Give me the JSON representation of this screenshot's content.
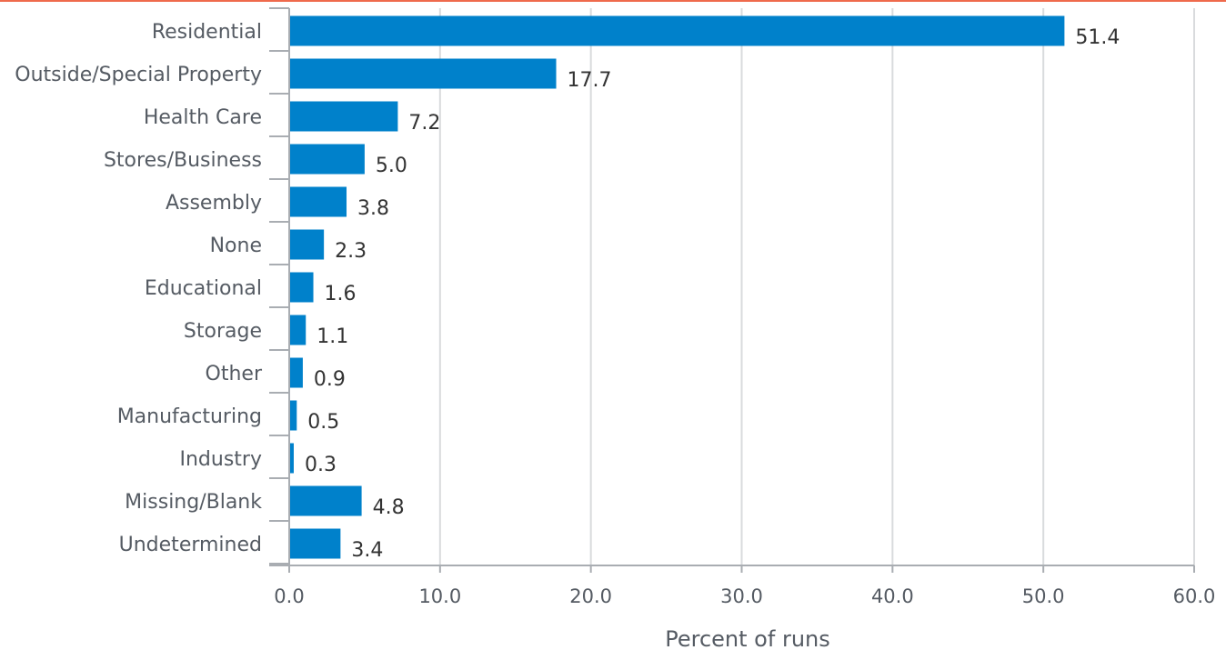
{
  "chart_data": {
    "type": "bar",
    "orientation": "horizontal",
    "categories": [
      "Residential",
      "Outside/Special Property",
      "Health Care",
      "Stores/Business",
      "Assembly",
      "None",
      "Educational",
      "Storage",
      "Other",
      "Manufacturing",
      "Industry",
      "Missing/Blank",
      "Undetermined"
    ],
    "values": [
      51.4,
      17.7,
      7.2,
      5.0,
      3.8,
      2.3,
      1.6,
      1.1,
      0.9,
      0.5,
      0.3,
      4.8,
      3.4
    ],
    "value_labels": [
      "51.4",
      "17.7",
      "7.2",
      "5.0",
      "3.8",
      "2.3",
      "1.6",
      "1.1",
      "0.9",
      "0.5",
      "0.3",
      "4.8",
      "3.4"
    ],
    "title": "",
    "xlabel": "Percent of runs",
    "ylabel": "",
    "xlim": [
      0,
      60
    ],
    "xticks": [
      0,
      10,
      20,
      30,
      40,
      50,
      60
    ],
    "xtick_labels": [
      "0.0",
      "10.0",
      "20.0",
      "30.0",
      "40.0",
      "50.0",
      "60.0"
    ],
    "grid": "vertical",
    "legend": "none"
  },
  "colors": {
    "bar": "#0081cb",
    "grid": "#d9dbdd",
    "axis": "#a9adb2",
    "top_rule": "#ef6a4c"
  }
}
